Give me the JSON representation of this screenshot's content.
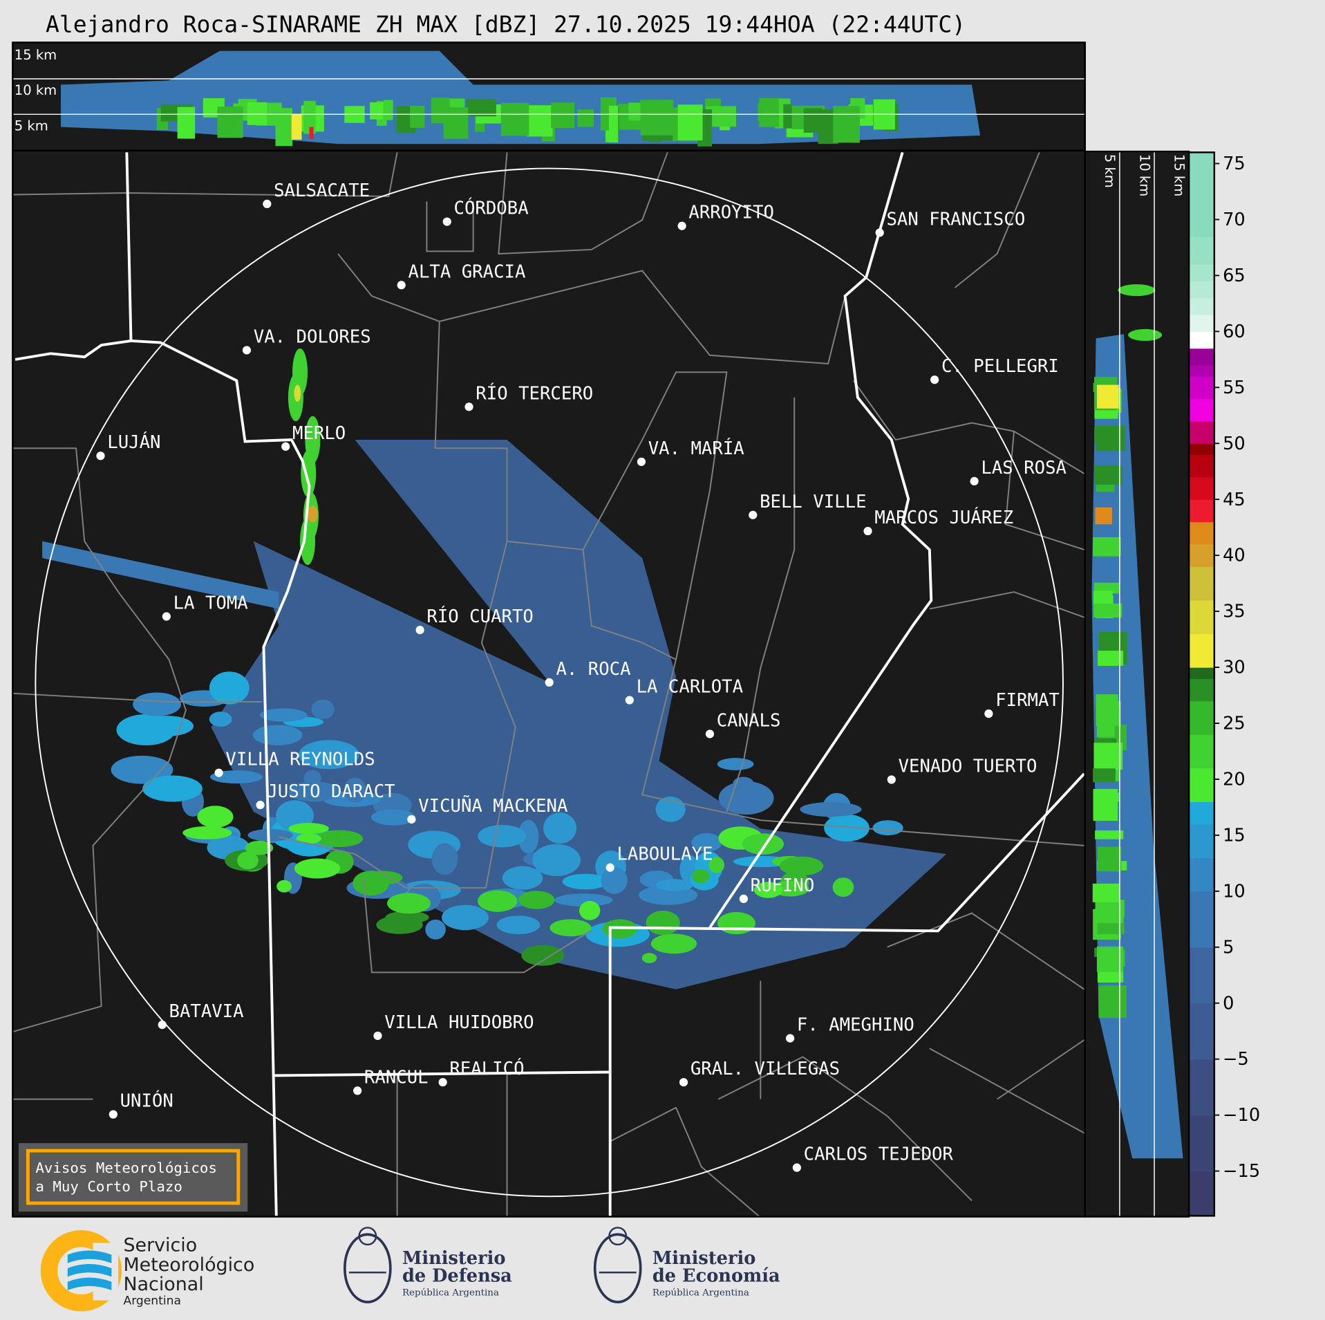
{
  "title": "Alejandro Roca-SINARAME ZH MAX [dBZ] 27.10.2025 19:44HOA (22:44UTC)",
  "top_panel": {
    "height_labels": [
      "15 km",
      "10 km",
      "5 km"
    ]
  },
  "side_panel": {
    "height_labels": [
      "5 km",
      "10 km",
      "15 km"
    ]
  },
  "colorbar": {
    "unit": "dBZ",
    "range": [
      -19,
      76
    ],
    "ticks": [
      "75",
      "70",
      "65",
      "60",
      "55",
      "50",
      "45",
      "40",
      "35",
      "30",
      "25",
      "20",
      "15",
      "10",
      "5",
      "0",
      "−5",
      "−10",
      "−15"
    ],
    "tick_values": [
      75,
      70,
      65,
      60,
      55,
      50,
      45,
      40,
      35,
      30,
      25,
      20,
      15,
      10,
      5,
      0,
      -5,
      -10,
      -15
    ],
    "colors": [
      [
        -19,
        "#3b3d6a"
      ],
      [
        -15,
        "#3b4575"
      ],
      [
        -10,
        "#3c4f83"
      ],
      [
        -5,
        "#3d5c93"
      ],
      [
        0,
        "#3d66a0"
      ],
      [
        5,
        "#3a78b4"
      ],
      [
        10,
        "#3587c4"
      ],
      [
        13,
        "#2d98d0"
      ],
      [
        16,
        "#22a9dc"
      ],
      [
        18,
        "#4be832"
      ],
      [
        21,
        "#3fd230"
      ],
      [
        24,
        "#36b82c"
      ],
      [
        27,
        "#2a8f25"
      ],
      [
        29,
        "#1f6a1d"
      ],
      [
        30,
        "#f0ea34"
      ],
      [
        33,
        "#dcd838"
      ],
      [
        36,
        "#cfc03a"
      ],
      [
        39,
        "#d7a02a"
      ],
      [
        41,
        "#e08a1c"
      ],
      [
        43,
        "#ee1a30"
      ],
      [
        45,
        "#d60a1c"
      ],
      [
        47,
        "#b80010"
      ],
      [
        49,
        "#900000"
      ],
      [
        50,
        "#c8006a"
      ],
      [
        52,
        "#f000e0"
      ],
      [
        54,
        "#d000c8"
      ],
      [
        56,
        "#b000b0"
      ],
      [
        57,
        "#980098"
      ],
      [
        58.5,
        "#ffffff"
      ],
      [
        60,
        "#e0f5ec"
      ],
      [
        61.5,
        "#c6efdf"
      ],
      [
        63,
        "#b6ead5"
      ],
      [
        64.5,
        "#a6e6cc"
      ],
      [
        66,
        "#96e0c4"
      ],
      [
        68.5,
        "#88dcbd"
      ],
      [
        76,
        "#88dcbd"
      ]
    ]
  },
  "cities": [
    "SALSACATE",
    "CÓRDOBA",
    "ARROYITO",
    "SAN FRANCISCO",
    "ALTA GRACIA",
    "VA. DOLORES",
    "C. PELLEGRI",
    "RÍO TERCERO",
    "LUJÁN",
    "MERLO",
    "VA. MARÍA",
    "LAS ROSA",
    "BELL VILLE",
    "MARCOS JUÁREZ",
    "LA TOMA",
    "RÍO CUARTO",
    "A. ROCA",
    "LA CARLOTA",
    "FIRMAT",
    "CANALS",
    "VILLA REYNOLDS",
    "VENADO TUERTO",
    "JUSTO DARACT",
    "VICUÑA MACKENA",
    "LABOULAYE",
    "RUFINO",
    "BATAVIA",
    "VILLA HUIDOBRO",
    "F. AMEGHINO",
    "RANCUL",
    "REALICÓ",
    "GRAL. VILLEGAS",
    "UNIÓN",
    "CARLOS TEJEDOR"
  ],
  "alert_box": {
    "line1": "Avisos Meteorológicos",
    "line2": "a Muy Corto Plazo",
    "border_color": "#ffa500"
  },
  "logos": {
    "smn": [
      "Servicio",
      "Meteorológico",
      "Nacional",
      "Argentina"
    ],
    "defensa": [
      "Ministerio",
      "de Defensa",
      "República Argentina"
    ],
    "economia": [
      "Ministerio",
      "de Economía",
      "República Argentina"
    ]
  },
  "colors": {
    "map_bg": "#1a1a1a",
    "province_border": "#ffffff",
    "department_border": "#808080",
    "page_bg": "#e6e6e6"
  }
}
